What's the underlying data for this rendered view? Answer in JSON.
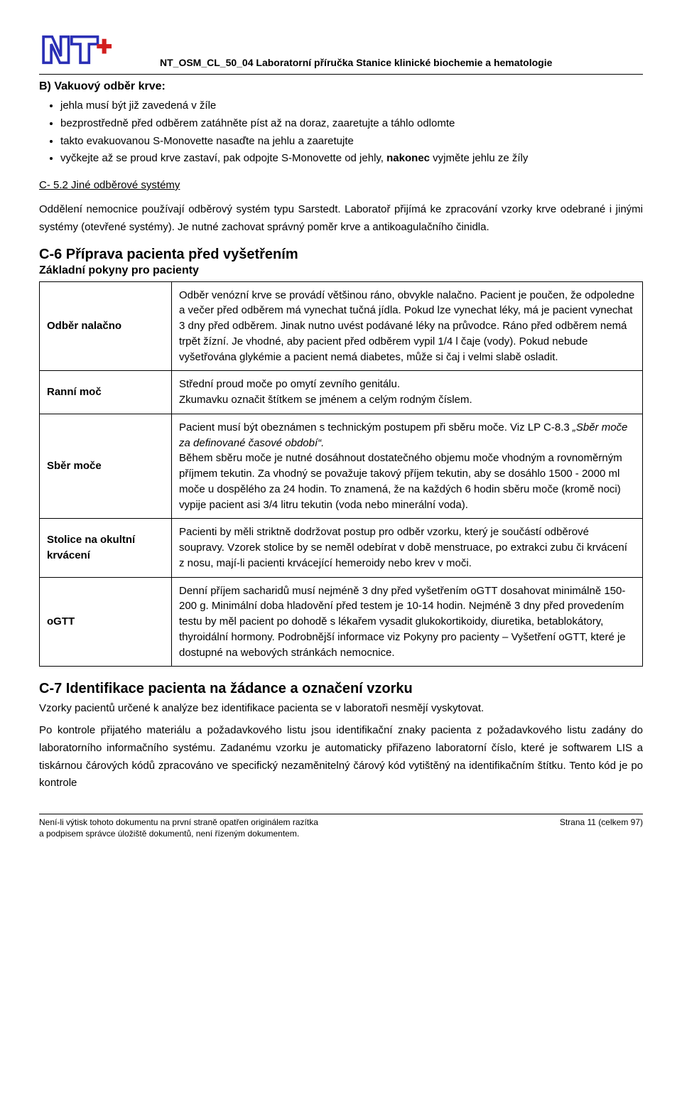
{
  "header": {
    "doc_title": "NT_OSM_CL_50_04 Laboratorní příručka Stanice klinické biochemie a hematologie"
  },
  "section_b": {
    "title": "B) Vakuový odběr krve:",
    "bullets": [
      "jehla musí být již zavedená v žíle",
      "bezprostředně před odběrem zatáhněte píst až na doraz, zaaretujte a táhlo odlomte",
      "takto evakuovanou S-Monovette nasaďte na jehlu a zaaretujte",
      "vyčkejte až se proud krve zastaví, pak odpojte S-Monovette od jehly, nakonec vyjměte jehlu ze žíly"
    ]
  },
  "c52": {
    "title": "C- 5.2  Jiné odběrové systémy",
    "para": "Oddělení nemocnice používají odběrový systém typu Sarstedt. Laboratoř přijímá ke zpracování vzorky krve odebrané i jinými systémy (otevřené systémy). Je nutné zachovat správný poměr krve a antikoagulačního činidla."
  },
  "c6": {
    "title": "C-6 Příprava pacienta před vyšetřením",
    "subtitle": "Základní pokyny pro pacienty",
    "rows": [
      {
        "label": "Odběr nalačno",
        "text": "Odběr venózní krve se provádí většinou ráno, obvykle nalačno. Pacient je poučen, že odpoledne a večer před odběrem má vynechat tučná jídla. Pokud lze vynechat léky, má je pacient vynechat 3 dny před odběrem. Jinak nutno uvést podávané léky na průvodce. Ráno před odběrem nemá trpět žízní. Je vhodné, aby pacient před odběrem vypil 1/4 l čaje (vody). Pokud nebude vyšetřována glykémie a pacient nemá diabetes, může si čaj i velmi slabě osladit."
      },
      {
        "label": "Ranní moč",
        "text": "Střední proud moče po omytí zevního genitálu.\nZkumavku označit štítkem se jménem a celým rodným číslem."
      },
      {
        "label": "Sběr moče",
        "text": "Pacient musí být obeznámen s technickým postupem při sběru moče.  Viz LP C-8.3 „Sběr moče za definované časové období“.\n Během sběru moče je nutné dosáhnout dostatečného objemu moče vhodným a rovnoměrným příjmem tekutin. Za vhodný se považuje takový příjem tekutin, aby se dosáhlo 1500 - 2000 ml moče u dospělého za 24 hodin. To znamená, že na každých 6 hodin sběru moče (kromě noci) vypije pacient asi 3/4 litru tekutin (voda nebo minerální voda)."
      },
      {
        "label": "Stolice na okultní krvácení",
        "text": "Pacienti by měli striktně dodržovat postup pro odběr vzorku, který je součástí odběrové soupravy. Vzorek stolice by se neměl odebírat v době menstruace, po extrakci zubu či krvácení z nosu, mají-li pacienti krvácející hemeroidy nebo krev v moči."
      },
      {
        "label": "oGTT",
        "text": "Denní příjem sacharidů musí nejméně 3 dny před vyšetřením oGTT dosahovat minimálně 150-200 g. Minimální doba hladovění před testem je 10-14 hodin. Nejméně 3 dny před provedením testu by měl pacient po dohodě s lékařem vysadit glukokortikoidy, diuretika, betablokátory, thyroidální hormony. Podrobnější informace viz Pokyny pro pacienty – Vyšetření oGTT, které je dostupné na webových stránkách nemocnice."
      }
    ]
  },
  "c7": {
    "title": "C-7 Identifikace pacienta na žádance a označení vzorku",
    "p1": "Vzorky pacientů určené k analýze bez identifikace pacienta se v laboratoři nesmějí vyskytovat.",
    "p2": "Po kontrole přijatého materiálu a požadavkového listu jsou identifikační znaky pacienta z požadavkového listu zadány do laboratorního informačního systému. Zadanému vzorku je automaticky přiřazeno laboratorní číslo, které je softwarem LIS a tiskárnou čárových kódů zpracováno ve specifický nezaměnitelný čárový kód vytištěný na identifikačním štítku. Tento kód je po kontrole"
  },
  "footer": {
    "left": "Není-li výtisk tohoto dokumentu na první straně opatřen originálem razítka\na podpisem správce úložiště dokumentů, není řízeným dokumentem.",
    "right": "Strana 11 (celkem 97)"
  },
  "style": {
    "body_font_size": 15,
    "heading_font_size": 20,
    "text_color": "#000000",
    "background": "#ffffff",
    "logo_colors": {
      "outline": "#2a2fb5",
      "fill": "#ffffff",
      "plus": "#d21f1f"
    }
  }
}
